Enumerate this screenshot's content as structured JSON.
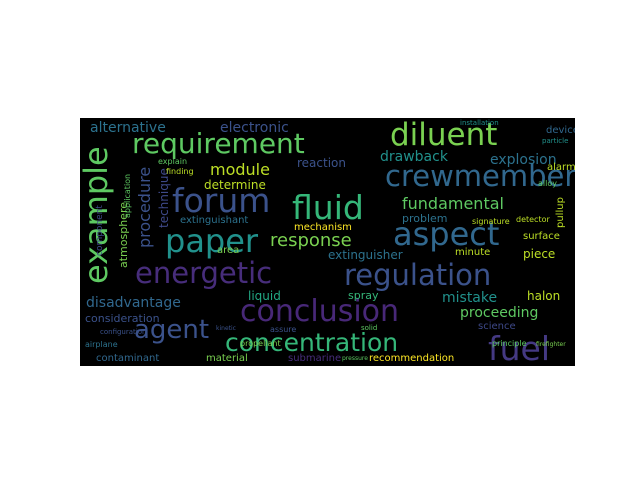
{
  "word_cloud": {
    "background": "#000000",
    "words": [
      {
        "text": "requirement",
        "color": "#5ec962"
      },
      {
        "text": "diluent",
        "color": "#7ad151"
      },
      {
        "text": "example",
        "color": "#5ec962"
      },
      {
        "text": "crewmember",
        "color": "#31688e"
      },
      {
        "text": "forum",
        "color": "#3b528b"
      },
      {
        "text": "fluid",
        "color": "#35b779"
      },
      {
        "text": "aspect",
        "color": "#31688e"
      },
      {
        "text": "paper",
        "color": "#21918c"
      },
      {
        "text": "energetic",
        "color": "#472d7b"
      },
      {
        "text": "regulation",
        "color": "#3b528b"
      },
      {
        "text": "conclusion",
        "color": "#482878"
      },
      {
        "text": "agent",
        "color": "#3b528b"
      },
      {
        "text": "concentration",
        "color": "#35b779"
      },
      {
        "text": "fuel",
        "color": "#443983"
      },
      {
        "text": "alternative",
        "color": "#2c728e"
      },
      {
        "text": "electronic",
        "color": "#3b528b"
      },
      {
        "text": "module",
        "color": "#bddf26"
      },
      {
        "text": "fundamental",
        "color": "#5ec962"
      },
      {
        "text": "response",
        "color": "#7ad151"
      },
      {
        "text": "drawback",
        "color": "#21918c"
      },
      {
        "text": "explosion",
        "color": "#2c728e"
      },
      {
        "text": "procedure",
        "color": "#3b528b"
      },
      {
        "text": "determine",
        "color": "#bddf26"
      },
      {
        "text": "reaction",
        "color": "#3b528b"
      },
      {
        "text": "technique",
        "color": "#3e4989"
      },
      {
        "text": "extinguishant",
        "color": "#2c728e"
      },
      {
        "text": "mechanism",
        "color": "#fde725"
      },
      {
        "text": "problem",
        "color": "#2c728e"
      },
      {
        "text": "atmosphere",
        "color": "#7ad151"
      },
      {
        "text": "disadvantage",
        "color": "#31688e"
      },
      {
        "text": "area",
        "color": "#7ad151"
      },
      {
        "text": "liquid",
        "color": "#22a884"
      },
      {
        "text": "extinguisher",
        "color": "#2c728e"
      },
      {
        "text": "spray",
        "color": "#35b779"
      },
      {
        "text": "mistake",
        "color": "#21918c"
      },
      {
        "text": "proceeding",
        "color": "#5ec962"
      },
      {
        "text": "consideration",
        "color": "#3b528b"
      },
      {
        "text": "halon",
        "color": "#bddf26"
      },
      {
        "text": "science",
        "color": "#3e4989"
      },
      {
        "text": "surface",
        "color": "#bddf26"
      },
      {
        "text": "minute",
        "color": "#bddf26"
      },
      {
        "text": "piece",
        "color": "#bddf26"
      },
      {
        "text": "contaminant",
        "color": "#31688e"
      },
      {
        "text": "material",
        "color": "#7ad151"
      },
      {
        "text": "recommendation",
        "color": "#fde725"
      },
      {
        "text": "component",
        "color": "#3e4989"
      },
      {
        "text": "propellant",
        "color": "#7ad151"
      },
      {
        "text": "airplane",
        "color": "#2c728e"
      },
      {
        "text": "pullup",
        "color": "#bddf26"
      },
      {
        "text": "detector",
        "color": "#bddf26"
      },
      {
        "text": "signature",
        "color": "#bddf26"
      },
      {
        "text": "alarm",
        "color": "#bddf26"
      },
      {
        "text": "device",
        "color": "#31688e"
      },
      {
        "text": "finding",
        "color": "#bddf26"
      },
      {
        "text": "explain",
        "color": "#5ec962"
      },
      {
        "text": "configuration",
        "color": "#3b528b"
      },
      {
        "text": "application",
        "color": "#5ec962"
      },
      {
        "text": "principle",
        "color": "#5ec962"
      },
      {
        "text": "installation",
        "color": "#21918c"
      },
      {
        "text": "assure",
        "color": "#3b528b"
      },
      {
        "text": "alloy",
        "color": "#5ec962"
      },
      {
        "text": "solid",
        "color": "#5ec962"
      },
      {
        "text": "kinetic",
        "color": "#3b528b"
      },
      {
        "text": "particle",
        "color": "#21918c"
      },
      {
        "text": "firefighter",
        "color": "#7ad151"
      },
      {
        "text": "pressure",
        "color": "#5ec962"
      },
      {
        "text": "submarine",
        "color": "#472d7b"
      }
    ]
  }
}
